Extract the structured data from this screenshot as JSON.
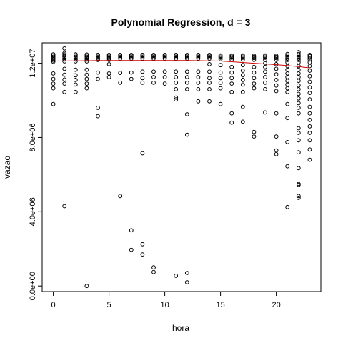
{
  "chart_data": {
    "type": "scatter",
    "title": "Polynomial Regression, d = 3",
    "xlabel": "hora",
    "ylabel": "vazao",
    "xlim": [
      -1,
      24
    ],
    "ylim": [
      -300000,
      13100000
    ],
    "x_ticks": [
      0,
      5,
      10,
      15,
      20
    ],
    "x_tick_labels": [
      "0",
      "5",
      "10",
      "15",
      "20"
    ],
    "y_ticks": [
      0,
      4000000,
      8000000,
      12000000
    ],
    "y_tick_labels": [
      "0.0e+00",
      "4.0e+06",
      "8.0e+06",
      "1.2e+07"
    ],
    "grid": false,
    "point_color": "#000000",
    "fit_color": "#cc0000",
    "fit_line": {
      "name": "",
      "x": [
        0,
        2,
        4,
        6,
        8,
        10,
        12,
        14,
        15,
        16,
        18,
        20,
        21,
        22,
        23
      ],
      "y": [
        12120000,
        12130000,
        12140000,
        12150000,
        12150000,
        12150000,
        12150000,
        12130000,
        12120000,
        12080000,
        12000000,
        11920000,
        11870000,
        11820000,
        11750000
      ]
    },
    "points": [
      [
        0,
        12480000
      ],
      [
        0,
        12420000
      ],
      [
        0,
        12350000
      ],
      [
        0,
        12280000
      ],
      [
        0,
        12220000
      ],
      [
        0,
        12150000
      ],
      [
        0,
        12080000
      ],
      [
        0,
        11450000
      ],
      [
        0,
        11150000
      ],
      [
        0,
        10900000
      ],
      [
        0,
        10650000
      ],
      [
        0,
        9800000
      ],
      [
        1,
        12800000
      ],
      [
        1,
        12550000
      ],
      [
        1,
        12480000
      ],
      [
        1,
        12420000
      ],
      [
        1,
        12350000
      ],
      [
        1,
        12280000
      ],
      [
        1,
        12200000
      ],
      [
        1,
        12100000
      ],
      [
        1,
        11700000
      ],
      [
        1,
        11380000
      ],
      [
        1,
        11120000
      ],
      [
        1,
        10900000
      ],
      [
        1,
        10450000
      ],
      [
        1,
        4300000
      ],
      [
        2,
        12480000
      ],
      [
        2,
        12420000
      ],
      [
        2,
        12350000
      ],
      [
        2,
        12280000
      ],
      [
        2,
        12200000
      ],
      [
        2,
        12100000
      ],
      [
        2,
        11650000
      ],
      [
        2,
        11350000
      ],
      [
        2,
        11100000
      ],
      [
        2,
        10850000
      ],
      [
        2,
        10450000
      ],
      [
        3,
        12470000
      ],
      [
        3,
        12420000
      ],
      [
        3,
        12350000
      ],
      [
        3,
        12280000
      ],
      [
        3,
        12200000
      ],
      [
        3,
        12100000
      ],
      [
        3,
        11650000
      ],
      [
        3,
        11380000
      ],
      [
        3,
        11150000
      ],
      [
        3,
        10900000
      ],
      [
        3,
        10650000
      ],
      [
        3,
        0
      ],
      [
        4,
        12450000
      ],
      [
        4,
        12400000
      ],
      [
        4,
        12330000
      ],
      [
        4,
        12260000
      ],
      [
        4,
        12180000
      ],
      [
        4,
        11500000
      ],
      [
        4,
        11150000
      ],
      [
        4,
        9600000
      ],
      [
        4,
        9150000
      ],
      [
        5,
        12450000
      ],
      [
        5,
        12400000
      ],
      [
        5,
        12330000
      ],
      [
        5,
        12260000
      ],
      [
        5,
        12180000
      ],
      [
        5,
        11950000
      ],
      [
        5,
        11450000
      ],
      [
        5,
        11250000
      ],
      [
        6,
        12450000
      ],
      [
        6,
        12400000
      ],
      [
        6,
        12330000
      ],
      [
        6,
        12250000
      ],
      [
        6,
        11480000
      ],
      [
        6,
        10950000
      ],
      [
        6,
        4850000
      ],
      [
        7,
        12450000
      ],
      [
        7,
        12400000
      ],
      [
        7,
        12330000
      ],
      [
        7,
        12250000
      ],
      [
        7,
        11500000
      ],
      [
        7,
        11150000
      ],
      [
        7,
        3000000
      ],
      [
        7,
        1950000
      ],
      [
        8,
        12450000
      ],
      [
        8,
        12400000
      ],
      [
        8,
        12330000
      ],
      [
        8,
        12250000
      ],
      [
        8,
        11550000
      ],
      [
        8,
        11200000
      ],
      [
        8,
        10950000
      ],
      [
        8,
        7150000
      ],
      [
        8,
        2250000
      ],
      [
        8,
        1700000
      ],
      [
        9,
        12450000
      ],
      [
        9,
        12400000
      ],
      [
        9,
        12330000
      ],
      [
        9,
        12250000
      ],
      [
        9,
        11550000
      ],
      [
        9,
        11250000
      ],
      [
        9,
        10950000
      ],
      [
        9,
        1000000
      ],
      [
        9,
        750000
      ],
      [
        10,
        12450000
      ],
      [
        10,
        12400000
      ],
      [
        10,
        12330000
      ],
      [
        10,
        12250000
      ],
      [
        10,
        11550000
      ],
      [
        10,
        11250000
      ],
      [
        10,
        10900000
      ],
      [
        11,
        12450000
      ],
      [
        11,
        12400000
      ],
      [
        11,
        12330000
      ],
      [
        11,
        12250000
      ],
      [
        11,
        11550000
      ],
      [
        11,
        11250000
      ],
      [
        11,
        10950000
      ],
      [
        11,
        10600000
      ],
      [
        11,
        10150000
      ],
      [
        11,
        10050000
      ],
      [
        11,
        550000
      ],
      [
        12,
        12450000
      ],
      [
        12,
        12400000
      ],
      [
        12,
        12330000
      ],
      [
        12,
        12250000
      ],
      [
        12,
        11550000
      ],
      [
        12,
        11250000
      ],
      [
        12,
        10950000
      ],
      [
        12,
        10600000
      ],
      [
        12,
        9250000
      ],
      [
        12,
        8150000
      ],
      [
        12,
        700000
      ],
      [
        12,
        200000
      ],
      [
        13,
        12450000
      ],
      [
        13,
        12400000
      ],
      [
        13,
        12330000
      ],
      [
        13,
        12250000
      ],
      [
        13,
        11550000
      ],
      [
        13,
        11250000
      ],
      [
        13,
        10950000
      ],
      [
        13,
        10600000
      ],
      [
        13,
        9950000
      ],
      [
        14,
        12450000
      ],
      [
        14,
        12400000
      ],
      [
        14,
        12330000
      ],
      [
        14,
        12250000
      ],
      [
        14,
        11950000
      ],
      [
        14,
        11550000
      ],
      [
        14,
        11200000
      ],
      [
        14,
        10950000
      ],
      [
        14,
        10600000
      ],
      [
        14,
        9950000
      ],
      [
        15,
        12420000
      ],
      [
        15,
        12360000
      ],
      [
        15,
        12300000
      ],
      [
        15,
        12220000
      ],
      [
        15,
        11900000
      ],
      [
        15,
        11500000
      ],
      [
        15,
        11200000
      ],
      [
        15,
        10950000
      ],
      [
        15,
        10650000
      ],
      [
        15,
        9800000
      ],
      [
        16,
        12420000
      ],
      [
        16,
        12360000
      ],
      [
        16,
        12300000
      ],
      [
        16,
        12200000
      ],
      [
        16,
        11800000
      ],
      [
        16,
        11500000
      ],
      [
        16,
        11200000
      ],
      [
        16,
        10900000
      ],
      [
        16,
        10450000
      ],
      [
        16,
        9300000
      ],
      [
        16,
        8800000
      ],
      [
        17,
        12420000
      ],
      [
        17,
        12360000
      ],
      [
        17,
        12300000
      ],
      [
        17,
        12200000
      ],
      [
        17,
        11900000
      ],
      [
        17,
        11600000
      ],
      [
        17,
        11350000
      ],
      [
        17,
        11100000
      ],
      [
        17,
        10850000
      ],
      [
        17,
        10450000
      ],
      [
        17,
        9650000
      ],
      [
        17,
        8850000
      ],
      [
        18,
        12400000
      ],
      [
        18,
        12340000
      ],
      [
        18,
        12280000
      ],
      [
        18,
        12180000
      ],
      [
        18,
        11800000
      ],
      [
        18,
        11500000
      ],
      [
        18,
        11200000
      ],
      [
        18,
        10900000
      ],
      [
        18,
        10650000
      ],
      [
        18,
        8300000
      ],
      [
        18,
        8050000
      ],
      [
        19,
        12420000
      ],
      [
        19,
        12360000
      ],
      [
        19,
        12300000
      ],
      [
        19,
        12200000
      ],
      [
        19,
        12000000
      ],
      [
        19,
        11800000
      ],
      [
        19,
        11550000
      ],
      [
        19,
        11250000
      ],
      [
        19,
        10950000
      ],
      [
        19,
        10600000
      ],
      [
        19,
        9350000
      ],
      [
        20,
        12400000
      ],
      [
        20,
        12340000
      ],
      [
        20,
        12280000
      ],
      [
        20,
        12180000
      ],
      [
        20,
        11950000
      ],
      [
        20,
        11700000
      ],
      [
        20,
        11400000
      ],
      [
        20,
        11100000
      ],
      [
        20,
        10800000
      ],
      [
        20,
        10500000
      ],
      [
        20,
        9300000
      ],
      [
        20,
        8050000
      ],
      [
        20,
        7300000
      ],
      [
        20,
        7100000
      ],
      [
        21,
        12500000
      ],
      [
        21,
        12420000
      ],
      [
        21,
        12340000
      ],
      [
        21,
        12260000
      ],
      [
        21,
        12180000
      ],
      [
        21,
        12050000
      ],
      [
        21,
        11850000
      ],
      [
        21,
        11650000
      ],
      [
        21,
        11450000
      ],
      [
        21,
        11250000
      ],
      [
        21,
        11050000
      ],
      [
        21,
        10850000
      ],
      [
        21,
        10650000
      ],
      [
        21,
        10450000
      ],
      [
        21,
        9800000
      ],
      [
        21,
        9050000
      ],
      [
        21,
        7750000
      ],
      [
        21,
        6450000
      ],
      [
        21,
        4250000
      ],
      [
        22,
        12600000
      ],
      [
        22,
        12500000
      ],
      [
        22,
        12420000
      ],
      [
        22,
        12340000
      ],
      [
        22,
        12260000
      ],
      [
        22,
        12180000
      ],
      [
        22,
        12050000
      ],
      [
        22,
        11850000
      ],
      [
        22,
        11650000
      ],
      [
        22,
        11450000
      ],
      [
        22,
        11250000
      ],
      [
        22,
        11050000
      ],
      [
        22,
        10800000
      ],
      [
        22,
        10600000
      ],
      [
        22,
        10350000
      ],
      [
        22,
        10100000
      ],
      [
        22,
        9850000
      ],
      [
        22,
        9600000
      ],
      [
        22,
        9300000
      ],
      [
        22,
        8500000
      ],
      [
        22,
        8250000
      ],
      [
        22,
        7850000
      ],
      [
        22,
        7200000
      ],
      [
        22,
        6350000
      ],
      [
        22,
        5500000
      ],
      [
        22,
        5450000
      ],
      [
        22,
        4850000
      ],
      [
        22,
        4750000
      ],
      [
        23,
        12450000
      ],
      [
        23,
        12380000
      ],
      [
        23,
        12300000
      ],
      [
        23,
        12200000
      ],
      [
        23,
        12050000
      ],
      [
        23,
        11850000
      ],
      [
        23,
        11600000
      ],
      [
        23,
        11300000
      ],
      [
        23,
        11000000
      ],
      [
        23,
        10700000
      ],
      [
        23,
        10400000
      ],
      [
        23,
        10050000
      ],
      [
        23,
        9650000
      ],
      [
        23,
        9300000
      ],
      [
        23,
        8950000
      ],
      [
        23,
        8600000
      ],
      [
        23,
        8250000
      ],
      [
        23,
        7850000
      ],
      [
        23,
        7350000
      ],
      [
        23,
        6800000
      ]
    ]
  }
}
